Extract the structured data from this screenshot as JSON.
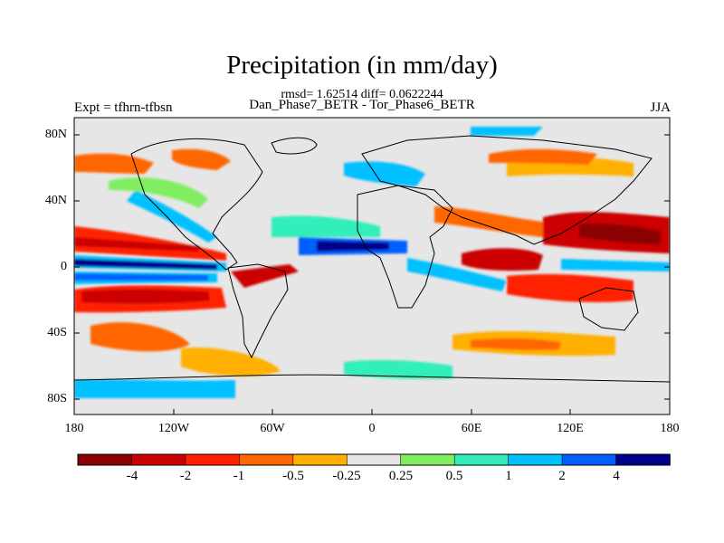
{
  "title": "Precipitation (in mm/day)",
  "subtitle_stats": "rmsd= 1.62514 diff= 0.0622244",
  "subtitle_expts": "Dan_Phase7_BETR - Tor_Phase6_BETR",
  "left_label": "Expt = tfhrn-tfbsn",
  "right_label": "JJA",
  "axes": {
    "lat_ticks": [
      "80N",
      "40N",
      "0",
      "40S",
      "80S"
    ],
    "lon_ticks": [
      "180",
      "120W",
      "60W",
      "0",
      "60E",
      "120E",
      "180"
    ]
  },
  "colorbar": {
    "colors": [
      "#8b0000",
      "#cc0000",
      "#ff2000",
      "#ff6600",
      "#ffb000",
      "#e6e6e6",
      "#80ee60",
      "#33eebb",
      "#00c0ff",
      "#0060ff",
      "#00008b"
    ],
    "labels": [
      "-4",
      "-2",
      "-1",
      "-0.5",
      "-0.25",
      "0.25",
      "0.5",
      "1",
      "2",
      "4"
    ]
  },
  "colors": {
    "land_outline": "#000000",
    "background_field": "#e6e6e6"
  }
}
